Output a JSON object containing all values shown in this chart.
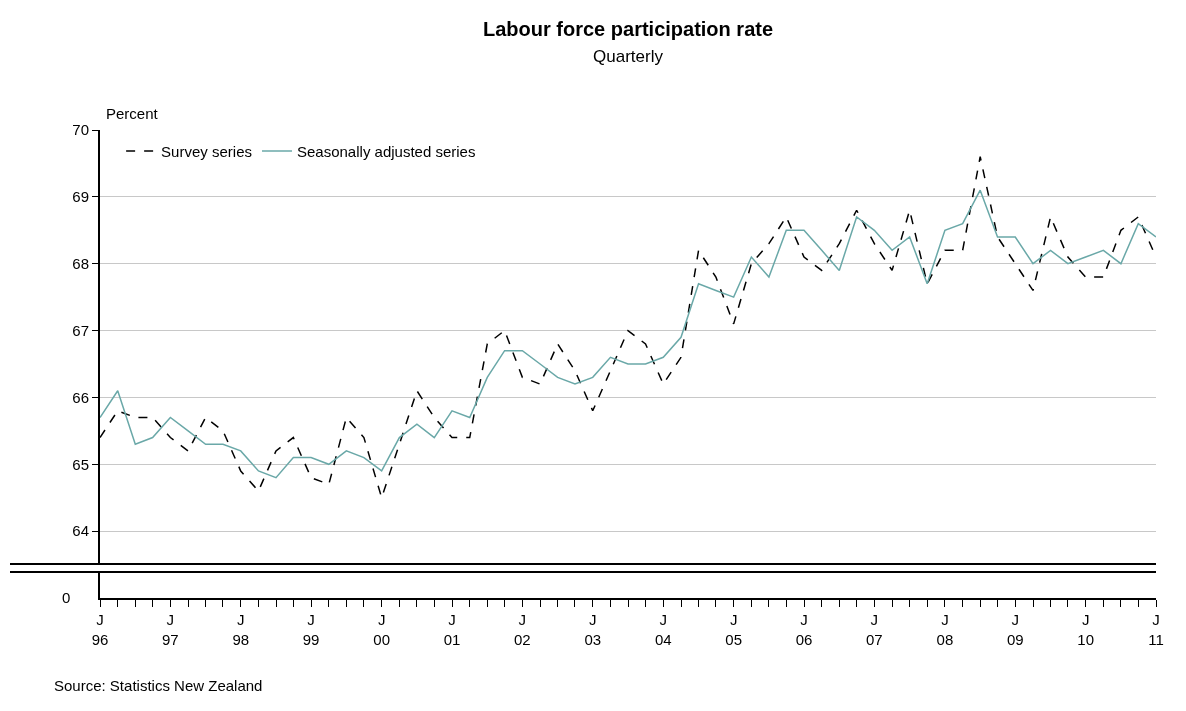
{
  "chart_data": [
    {
      "type": "line",
      "title": "Labour force participation rate",
      "subtitle": "Quarterly",
      "ylabel": "Percent",
      "x": [
        "1996-06",
        "1996-09",
        "1996-12",
        "1997-03",
        "1997-06",
        "1997-09",
        "1997-12",
        "1998-03",
        "1998-06",
        "1998-09",
        "1998-12",
        "1999-03",
        "1999-06",
        "1999-09",
        "1999-12",
        "2000-03",
        "2000-06",
        "2000-09",
        "2000-12",
        "2001-03",
        "2001-06",
        "2001-09",
        "2001-12",
        "2002-03",
        "2002-06",
        "2002-09",
        "2002-12",
        "2003-03",
        "2003-06",
        "2003-09",
        "2003-12",
        "2004-03",
        "2004-06",
        "2004-09",
        "2004-12",
        "2005-03",
        "2005-06",
        "2005-09",
        "2005-12",
        "2006-03",
        "2006-06",
        "2006-09",
        "2006-12",
        "2007-03",
        "2007-06",
        "2007-09",
        "2007-12",
        "2008-03",
        "2008-06",
        "2008-09",
        "2008-12",
        "2009-03",
        "2009-06",
        "2009-09",
        "2009-12",
        "2010-03",
        "2010-06",
        "2010-09",
        "2010-12",
        "2011-03",
        "2011-06"
      ],
      "series": [
        {
          "name": "Survey series",
          "color": "#000000",
          "line_style": "dashed",
          "values": [
            65.4,
            65.8,
            65.7,
            65.7,
            65.4,
            65.2,
            65.7,
            65.5,
            64.9,
            64.6,
            65.2,
            65.4,
            64.8,
            64.7,
            65.7,
            65.4,
            64.5,
            65.3,
            66.1,
            65.7,
            65.4,
            65.4,
            66.8,
            67.0,
            66.3,
            66.2,
            66.8,
            66.4,
            65.8,
            66.4,
            67.0,
            66.8,
            66.2,
            66.6,
            68.2,
            67.8,
            67.1,
            68.0,
            68.3,
            68.7,
            68.1,
            67.9,
            68.3,
            68.8,
            68.3,
            67.9,
            68.8,
            67.7,
            68.2,
            68.2,
            69.6,
            68.4,
            68.0,
            67.6,
            68.7,
            68.1,
            67.8,
            67.8,
            68.5,
            68.7,
            68.1
          ]
        },
        {
          "name": "Seasonally adjusted series",
          "color": "#6aa8a8",
          "line_style": "solid",
          "values": [
            65.7,
            66.1,
            65.3,
            65.4,
            65.7,
            65.5,
            65.3,
            65.3,
            65.2,
            64.9,
            64.8,
            65.1,
            65.1,
            65.0,
            65.2,
            65.1,
            64.9,
            65.4,
            65.6,
            65.4,
            65.8,
            65.7,
            66.3,
            66.7,
            66.7,
            66.5,
            66.3,
            66.2,
            66.3,
            66.6,
            66.5,
            66.5,
            66.6,
            66.9,
            67.7,
            67.6,
            67.5,
            68.1,
            67.8,
            68.5,
            68.5,
            68.2,
            67.9,
            68.7,
            68.5,
            68.2,
            68.4,
            67.7,
            68.5,
            68.6,
            69.1,
            68.4,
            68.4,
            68.0,
            68.2,
            68.0,
            68.1,
            68.2,
            68.0,
            68.6,
            68.4
          ]
        }
      ],
      "xlim": [
        "1996-06",
        "2011-06"
      ],
      "xticks": [
        {
          "value": "1996-06",
          "label": "J\n96"
        },
        {
          "value": "1996-09",
          "label": null
        },
        {
          "value": "1996-12",
          "label": null
        },
        {
          "value": "1997-03",
          "label": null
        },
        {
          "value": "1997-06",
          "label": "J\n97"
        },
        {
          "value": "1997-09",
          "label": null
        },
        {
          "value": "1997-12",
          "label": null
        },
        {
          "value": "1998-03",
          "label": null
        },
        {
          "value": "1998-06",
          "label": "J\n98"
        },
        {
          "value": "1998-09",
          "label": null
        },
        {
          "value": "1998-12",
          "label": null
        },
        {
          "value": "1999-03",
          "label": null
        },
        {
          "value": "1999-06",
          "label": "J\n99"
        },
        {
          "value": "1999-09",
          "label": null
        },
        {
          "value": "1999-12",
          "label": null
        },
        {
          "value": "2000-03",
          "label": null
        },
        {
          "value": "2000-06",
          "label": "J\n00"
        },
        {
          "value": "2000-09",
          "label": null
        },
        {
          "value": "2000-12",
          "label": null
        },
        {
          "value": "2001-03",
          "label": null
        },
        {
          "value": "2001-06",
          "label": "J\n01"
        },
        {
          "value": "2001-09",
          "label": null
        },
        {
          "value": "2001-12",
          "label": null
        },
        {
          "value": "2002-03",
          "label": null
        },
        {
          "value": "2002-06",
          "label": "J\n02"
        },
        {
          "value": "2002-09",
          "label": null
        },
        {
          "value": "2002-12",
          "label": null
        },
        {
          "value": "2003-03",
          "label": null
        },
        {
          "value": "2003-06",
          "label": "J\n03"
        },
        {
          "value": "2003-09",
          "label": null
        },
        {
          "value": "2003-12",
          "label": null
        },
        {
          "value": "2004-03",
          "label": null
        },
        {
          "value": "2004-06",
          "label": "J\n04"
        },
        {
          "value": "2004-09",
          "label": null
        },
        {
          "value": "2004-12",
          "label": null
        },
        {
          "value": "2005-03",
          "label": null
        },
        {
          "value": "2005-06",
          "label": "J\n05"
        },
        {
          "value": "2005-09",
          "label": null
        },
        {
          "value": "2005-12",
          "label": null
        },
        {
          "value": "2006-03",
          "label": null
        },
        {
          "value": "2006-06",
          "label": "J\n06"
        },
        {
          "value": "2006-09",
          "label": null
        },
        {
          "value": "2006-12",
          "label": null
        },
        {
          "value": "2007-03",
          "label": null
        },
        {
          "value": "2007-06",
          "label": "J\n07"
        },
        {
          "value": "2007-09",
          "label": null
        },
        {
          "value": "2007-12",
          "label": null
        },
        {
          "value": "2008-03",
          "label": null
        },
        {
          "value": "2008-06",
          "label": "J\n08"
        },
        {
          "value": "2008-09",
          "label": null
        },
        {
          "value": "2008-12",
          "label": null
        },
        {
          "value": "2009-03",
          "label": null
        },
        {
          "value": "2009-06",
          "label": "J\n09"
        },
        {
          "value": "2009-09",
          "label": null
        },
        {
          "value": "2009-12",
          "label": null
        },
        {
          "value": "2010-03",
          "label": null
        },
        {
          "value": "2010-06",
          "label": "J\n10"
        },
        {
          "value": "2010-09",
          "label": null
        },
        {
          "value": "2010-12",
          "label": null
        },
        {
          "value": "2011-03",
          "label": null
        },
        {
          "value": "2011-06",
          "label": "J\n11"
        }
      ],
      "ylim": [
        63,
        70
      ],
      "yticks": [
        64,
        65,
        66,
        67,
        68,
        69,
        70
      ],
      "grid": "y",
      "legend": "top left",
      "annotations": [
        "Source: Statistics New Zealand"
      ]
    },
    {
      "type": "other",
      "annotations": [
        "0"
      ]
    }
  ]
}
